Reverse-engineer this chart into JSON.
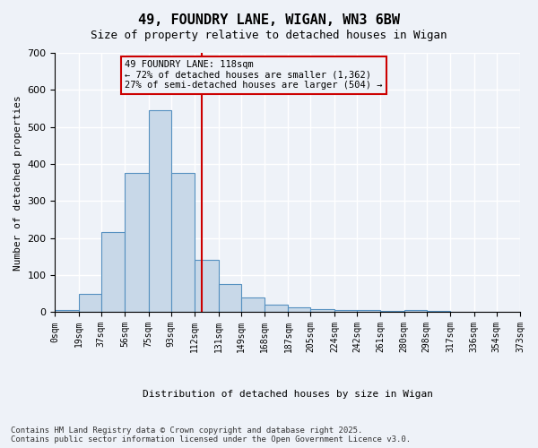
{
  "title1": "49, FOUNDRY LANE, WIGAN, WN3 6BW",
  "title2": "Size of property relative to detached houses in Wigan",
  "xlabel": "Distribution of detached houses by size in Wigan",
  "ylabel": "Number of detached properties",
  "bar_color": "#c8d8e8",
  "bar_edge_color": "#5590c0",
  "bg_color": "#eef2f8",
  "grid_color": "#ffffff",
  "bin_labels": [
    "0sqm",
    "19sqm",
    "37sqm",
    "56sqm",
    "75sqm",
    "93sqm",
    "112sqm",
    "131sqm",
    "149sqm",
    "168sqm",
    "187sqm",
    "205sqm",
    "224sqm",
    "242sqm",
    "261sqm",
    "280sqm",
    "298sqm",
    "317sqm",
    "336sqm",
    "354sqm",
    "373sqm"
  ],
  "bar_heights": [
    5,
    50,
    215,
    375,
    545,
    375,
    140,
    75,
    40,
    20,
    12,
    8,
    6,
    5,
    4,
    5,
    3,
    0,
    0,
    0
  ],
  "bin_edges": [
    0,
    19,
    37,
    56,
    75,
    93,
    112,
    131,
    149,
    168,
    187,
    205,
    224,
    242,
    261,
    280,
    298,
    317,
    336,
    354,
    373
  ],
  "ylim": [
    0,
    700
  ],
  "yticks": [
    0,
    100,
    200,
    300,
    400,
    500,
    600,
    700
  ],
  "vline_x": 118,
  "vline_color": "#cc0000",
  "annotation_title": "49 FOUNDRY LANE: 118sqm",
  "annotation_line1": "← 72% of detached houses are smaller (1,362)",
  "annotation_line2": "27% of semi-detached houses are larger (504) →",
  "annotation_box_color": "#cc0000",
  "footer1": "Contains HM Land Registry data © Crown copyright and database right 2025.",
  "footer2": "Contains public sector information licensed under the Open Government Licence v3.0."
}
